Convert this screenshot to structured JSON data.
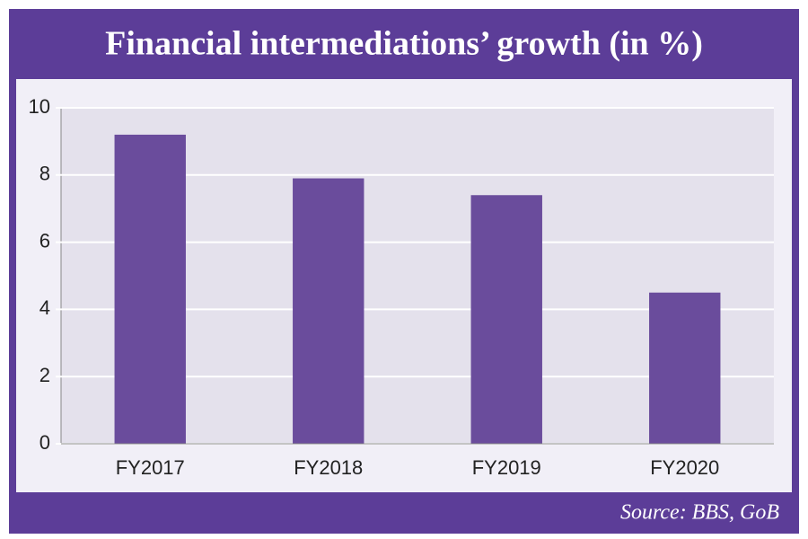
{
  "chart_data": {
    "type": "bar",
    "title": "Financial intermediations’ growth (in %)",
    "categories": [
      "FY2017",
      "FY2018",
      "FY2019",
      "FY2020"
    ],
    "values": [
      9.2,
      7.9,
      7.4,
      4.5
    ],
    "color": "#6a4c9c",
    "ylim": [
      0,
      10
    ],
    "yticks": [
      0,
      2,
      4,
      6,
      8,
      10
    ],
    "grid": true,
    "source": "Source: BBS, GoB"
  }
}
